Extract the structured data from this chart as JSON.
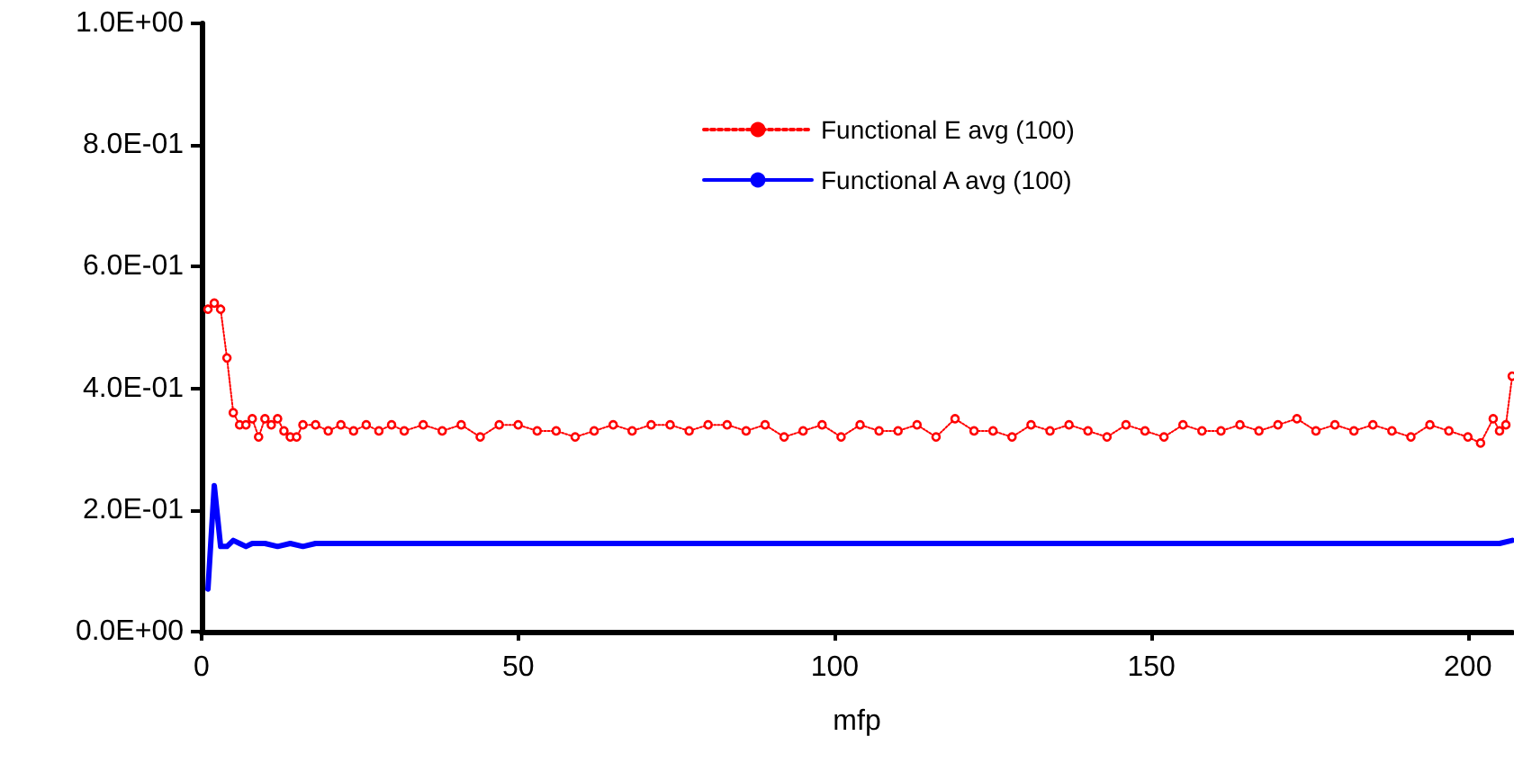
{
  "chart_data": {
    "type": "line",
    "xlabel": "mfp",
    "xlim": [
      0,
      207
    ],
    "xticks": [
      0,
      50,
      100,
      150,
      200
    ],
    "ylim": [
      0,
      1
    ],
    "yticks": [
      {
        "value": 0,
        "label": "0.0E+00"
      },
      {
        "value": 0.2,
        "label": "2.0E-01"
      },
      {
        "value": 0.4,
        "label": "4.0E-01"
      },
      {
        "value": 0.6,
        "label": "6.0E-01"
      },
      {
        "value": 0.8,
        "label": "8.0E-01"
      },
      {
        "value": 1,
        "label": "1.0E+00"
      }
    ],
    "grid": false,
    "legend": "top",
    "series": [
      {
        "name": "Functional E avg (100)",
        "color": "#ff0000",
        "marker": "circle",
        "line_style": "dotted",
        "x": [
          1,
          2,
          3,
          4,
          5,
          6,
          7,
          8,
          9,
          10,
          11,
          12,
          13,
          14,
          15,
          16,
          18,
          20,
          22,
          24,
          26,
          28,
          30,
          32,
          35,
          38,
          41,
          44,
          47,
          50,
          53,
          56,
          59,
          62,
          65,
          68,
          71,
          74,
          77,
          80,
          83,
          86,
          89,
          92,
          95,
          98,
          101,
          104,
          107,
          110,
          113,
          116,
          119,
          122,
          125,
          128,
          131,
          134,
          137,
          140,
          143,
          146,
          149,
          152,
          155,
          158,
          161,
          164,
          167,
          170,
          173,
          176,
          179,
          182,
          185,
          188,
          191,
          194,
          197,
          200,
          202,
          204,
          205,
          206,
          207
        ],
        "values": [
          0.53,
          0.54,
          0.53,
          0.45,
          0.36,
          0.34,
          0.34,
          0.35,
          0.32,
          0.35,
          0.34,
          0.35,
          0.33,
          0.32,
          0.32,
          0.34,
          0.34,
          0.33,
          0.34,
          0.33,
          0.34,
          0.33,
          0.34,
          0.33,
          0.34,
          0.33,
          0.34,
          0.32,
          0.34,
          0.34,
          0.33,
          0.33,
          0.32,
          0.33,
          0.34,
          0.33,
          0.34,
          0.34,
          0.33,
          0.34,
          0.34,
          0.33,
          0.34,
          0.32,
          0.33,
          0.34,
          0.32,
          0.34,
          0.33,
          0.33,
          0.34,
          0.32,
          0.35,
          0.33,
          0.33,
          0.32,
          0.34,
          0.33,
          0.34,
          0.33,
          0.32,
          0.34,
          0.33,
          0.32,
          0.34,
          0.33,
          0.33,
          0.34,
          0.33,
          0.34,
          0.35,
          0.33,
          0.34,
          0.33,
          0.34,
          0.33,
          0.32,
          0.34,
          0.33,
          0.32,
          0.31,
          0.35,
          0.33,
          0.34,
          0.42
        ]
      },
      {
        "name": "Functional A avg (100)",
        "color": "#0000ff",
        "marker": "none",
        "line_style": "solid",
        "x": [
          1,
          2,
          3,
          4,
          5,
          6,
          7,
          8,
          10,
          12,
          14,
          16,
          18,
          20,
          25,
          30,
          40,
          50,
          60,
          70,
          80,
          90,
          100,
          110,
          120,
          130,
          140,
          150,
          160,
          170,
          180,
          190,
          200,
          205,
          207
        ],
        "values": [
          0.07,
          0.24,
          0.14,
          0.14,
          0.15,
          0.145,
          0.14,
          0.145,
          0.145,
          0.14,
          0.145,
          0.14,
          0.145,
          0.145,
          0.145,
          0.145,
          0.145,
          0.145,
          0.145,
          0.145,
          0.145,
          0.145,
          0.145,
          0.145,
          0.145,
          0.145,
          0.145,
          0.145,
          0.145,
          0.145,
          0.145,
          0.145,
          0.145,
          0.145,
          0.15
        ]
      }
    ]
  }
}
